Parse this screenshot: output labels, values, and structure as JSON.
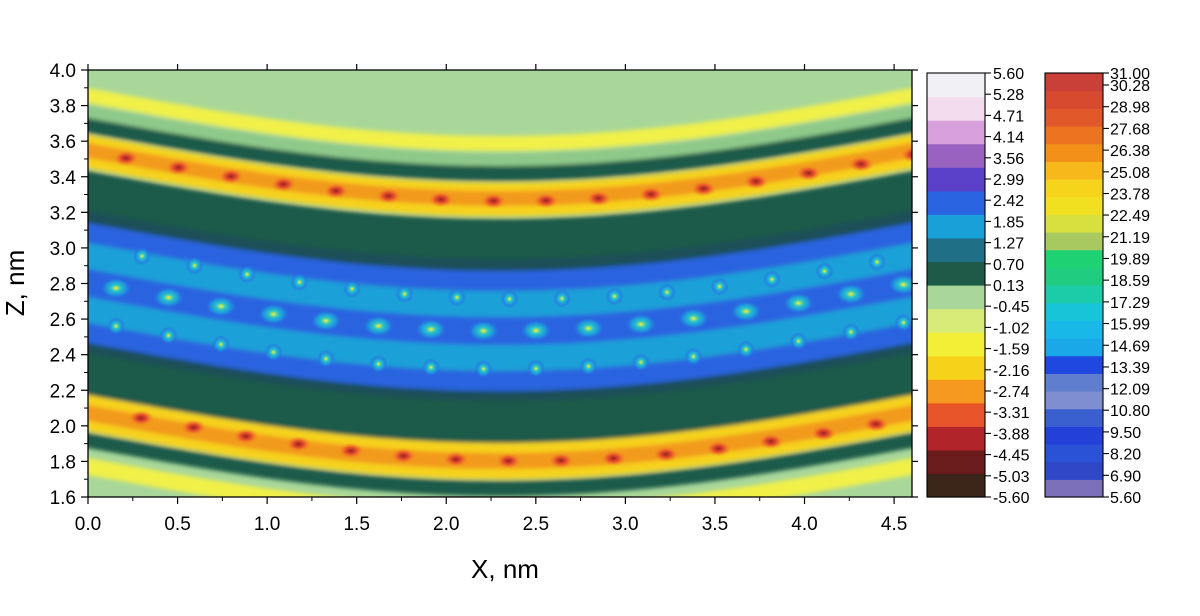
{
  "chart_data": {
    "type": "heatmap",
    "title": "",
    "xlabel": "X, nm",
    "ylabel": "Z, nm",
    "xlim": [
      0.0,
      4.6
    ],
    "ylim": [
      1.6,
      4.0
    ],
    "x_ticks": [
      "0.0",
      "0.5",
      "1.0",
      "1.5",
      "2.0",
      "2.5",
      "3.0",
      "3.5",
      "4.0",
      "4.5"
    ],
    "y_ticks": [
      "1.6",
      "1.8",
      "2.0",
      "2.2",
      "2.4",
      "2.6",
      "2.8",
      "3.0",
      "3.2",
      "3.4",
      "3.6",
      "3.8",
      "4.0"
    ],
    "colorbar_left": {
      "min": -5.6,
      "max": 5.6,
      "labels": [
        "5.60",
        "5.28",
        "4.71",
        "4.14",
        "3.56",
        "2.99",
        "2.42",
        "1.85",
        "1.27",
        "0.70",
        "0.13",
        "-0.45",
        "-1.02",
        "-1.59",
        "-2.16",
        "-2.74",
        "-3.31",
        "-3.88",
        "-4.45",
        "-5.03",
        "-5.60"
      ],
      "colors": [
        "#3b2418",
        "#6a1c1c",
        "#b0242a",
        "#e8542a",
        "#f59a1e",
        "#f7d21a",
        "#f2ef36",
        "#d8ea78",
        "#a9d79a",
        "#1f5a48",
        "#1f6f86",
        "#1aa0d8",
        "#2a64e0",
        "#5a3fc8",
        "#9a62c0",
        "#d8a0dc",
        "#f2dcee",
        "#f0f0f4"
      ]
    },
    "colorbar_right": {
      "min": 5.6,
      "max": 31.0,
      "labels": [
        "31.00",
        "30.28",
        "28.98",
        "27.68",
        "26.38",
        "25.08",
        "23.78",
        "22.49",
        "21.19",
        "19.89",
        "18.59",
        "17.29",
        "15.99",
        "14.69",
        "13.39",
        "12.09",
        "10.80",
        "9.50",
        "8.20",
        "6.90",
        "5.60"
      ],
      "colors": [
        "#7a6fb8",
        "#2f48c8",
        "#2a52d6",
        "#2340d8",
        "#3a60d0",
        "#7f8ed0",
        "#5f7fce",
        "#1f48e0",
        "#1aa8e8",
        "#18b8e8",
        "#18c4d8",
        "#1ccca8",
        "#20cc80",
        "#1ed274",
        "#a8c860",
        "#d8e040",
        "#f0e020",
        "#f6d41c",
        "#f6b81a",
        "#f29018",
        "#ec7420",
        "#e0582a",
        "#d84a30",
        "#c84038"
      ]
    }
  }
}
